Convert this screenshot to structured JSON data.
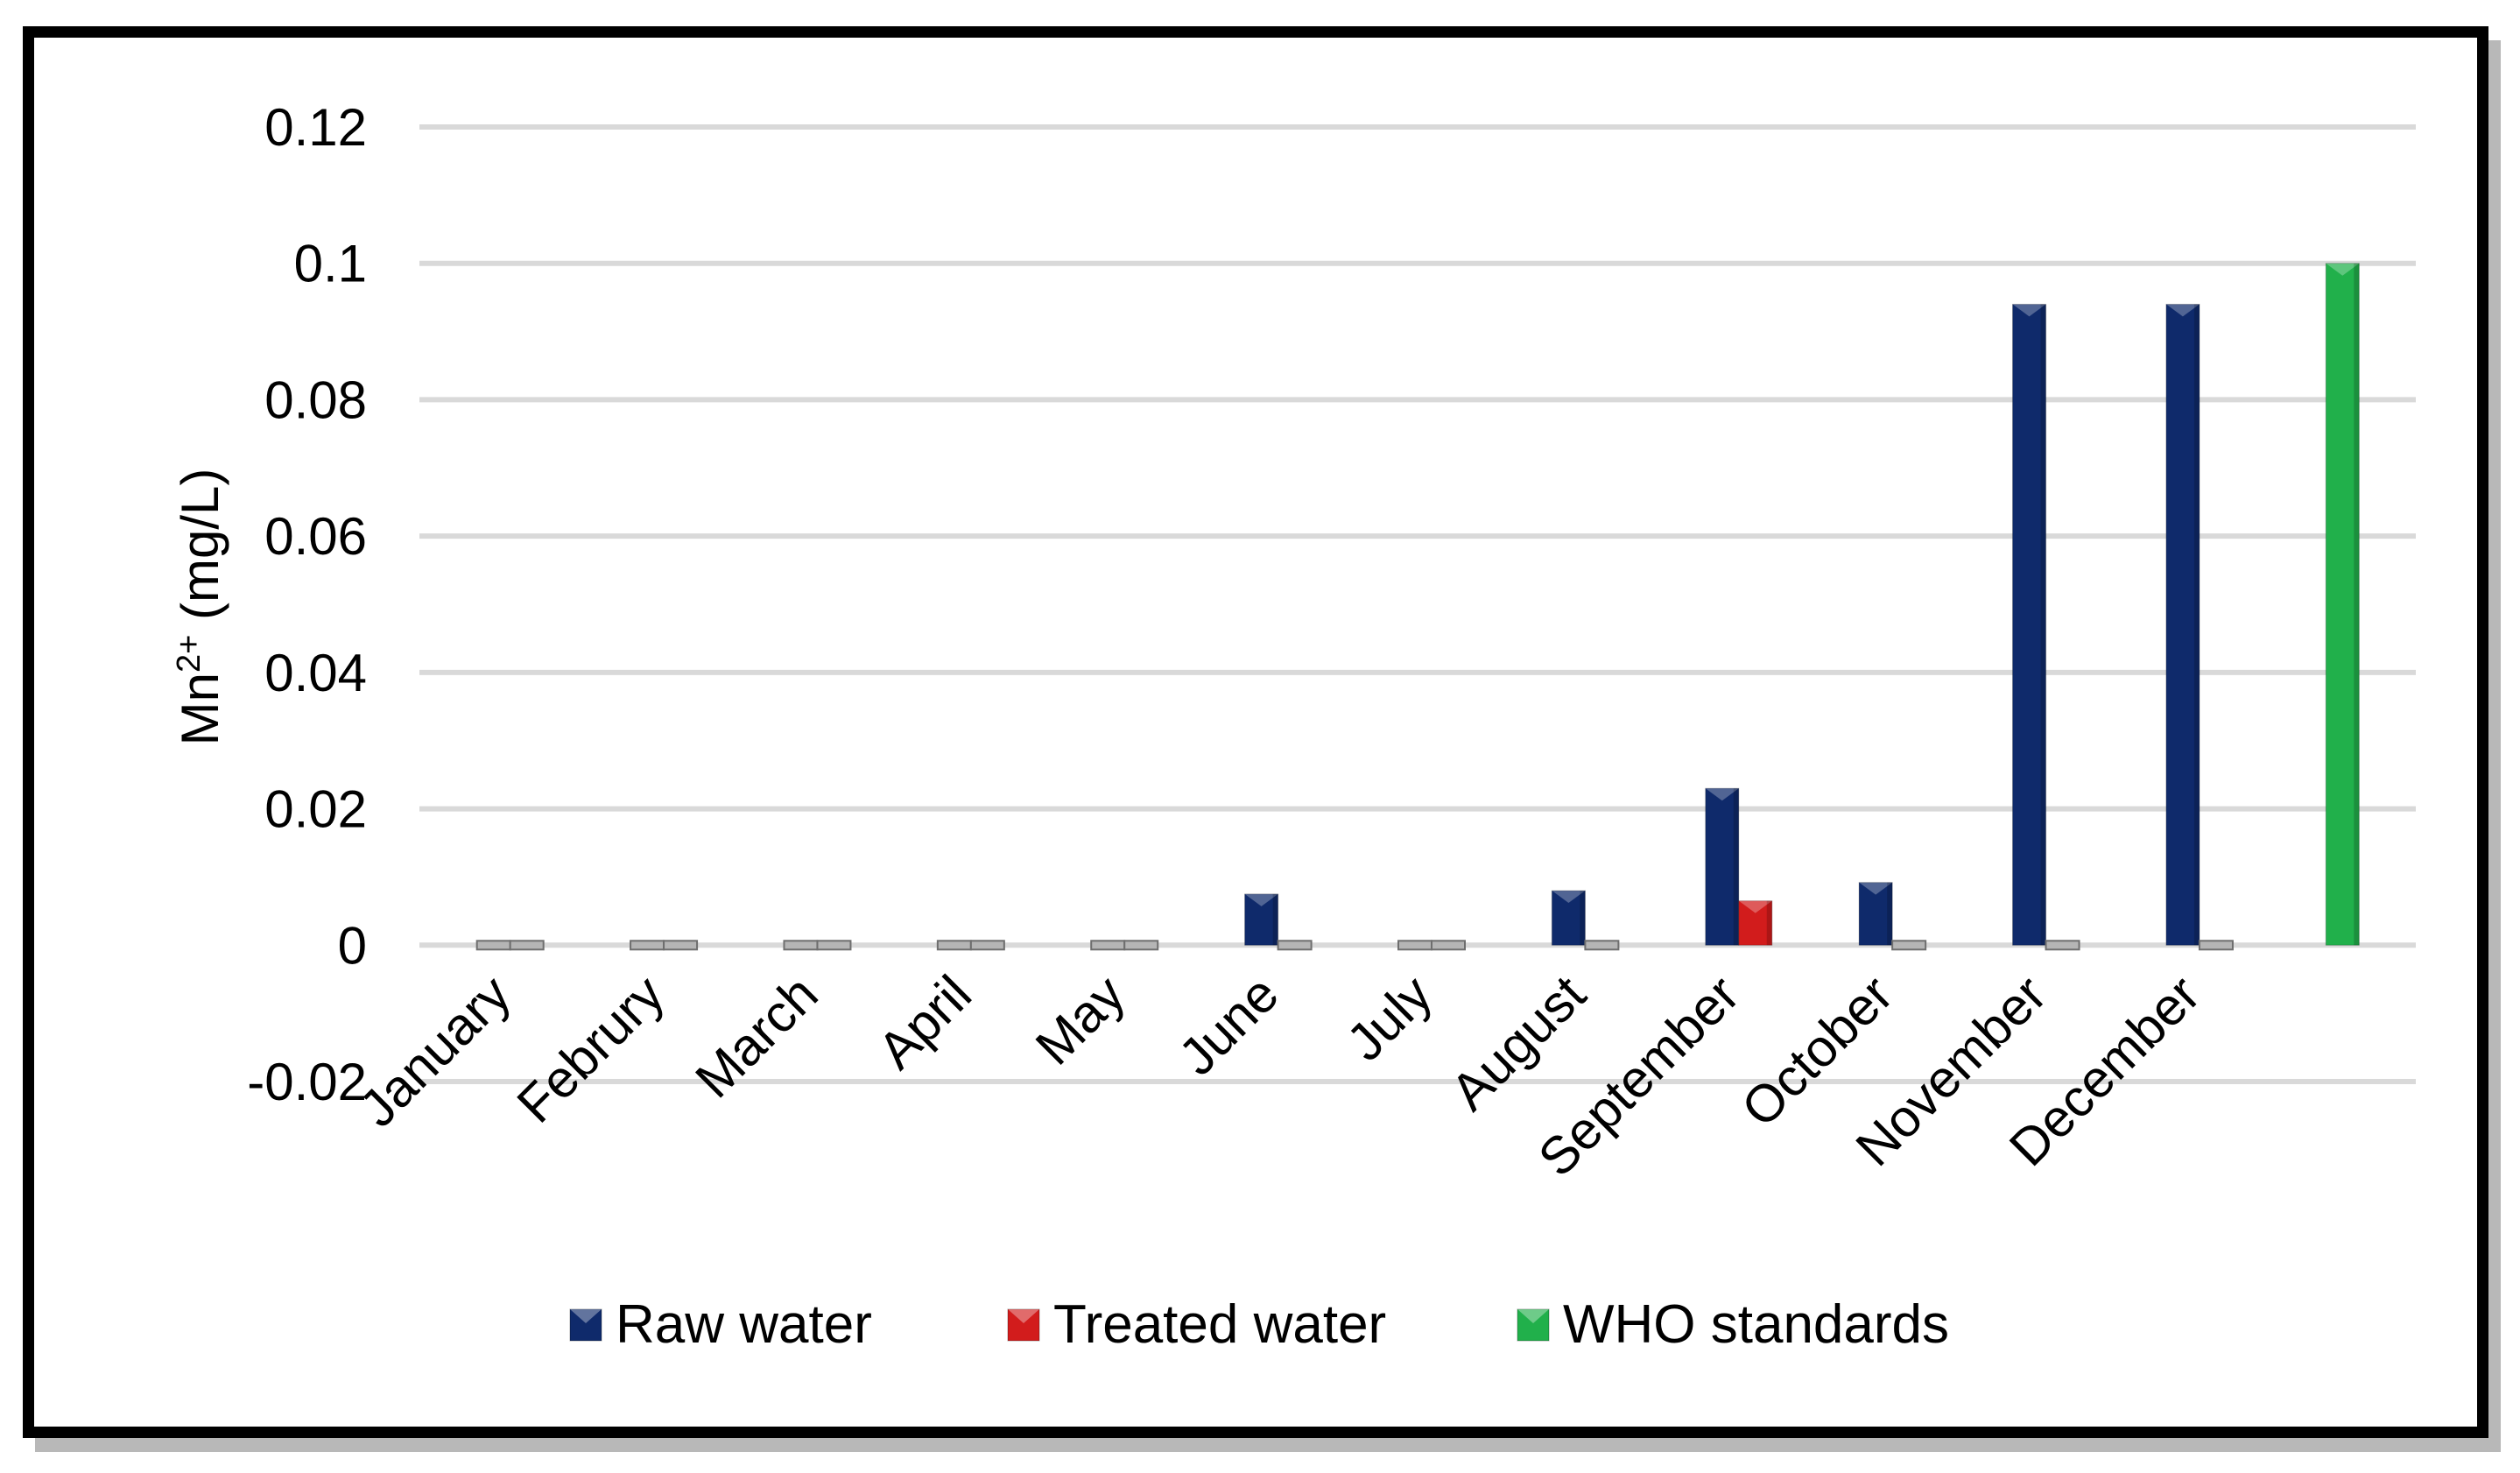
{
  "chart_data": {
    "type": "bar",
    "title": "",
    "xlabel": "",
    "ylabel": "Mn2+ (mg/L)",
    "ylabel_parts": {
      "base": "Mn",
      "sup": "2+",
      "unit": " (mg/L)"
    },
    "ylim": [
      -0.02,
      0.12
    ],
    "yticks": [
      -0.02,
      0,
      0.02,
      0.04,
      0.06,
      0.08,
      0.1,
      0.12
    ],
    "ytick_labels": [
      "-0.02",
      "0",
      "0.02",
      "0.04",
      "0.06",
      "0.08",
      "0.1",
      "0.12"
    ],
    "grid": true,
    "legend_position": "bottom",
    "categories": [
      "January",
      "Februry",
      "March",
      "April",
      "May",
      "June",
      "July",
      "August",
      "September",
      "October",
      "November",
      "December",
      ""
    ],
    "series": [
      {
        "name": "Raw water",
        "color": "#0f2a6b",
        "values": [
          0,
          0,
          0,
          0,
          0,
          0.0075,
          0,
          0.008,
          0.023,
          0.0092,
          0.094,
          0.094,
          null
        ]
      },
      {
        "name": "Treated water",
        "color": "#d21c1c",
        "values": [
          0,
          0,
          0,
          0,
          0,
          0,
          0,
          0,
          0.0065,
          0,
          0,
          0,
          null
        ]
      },
      {
        "name": "WHO standards",
        "color": "#21b04b",
        "values": [
          null,
          null,
          null,
          null,
          null,
          null,
          null,
          null,
          null,
          null,
          null,
          null,
          0.1
        ]
      }
    ]
  }
}
